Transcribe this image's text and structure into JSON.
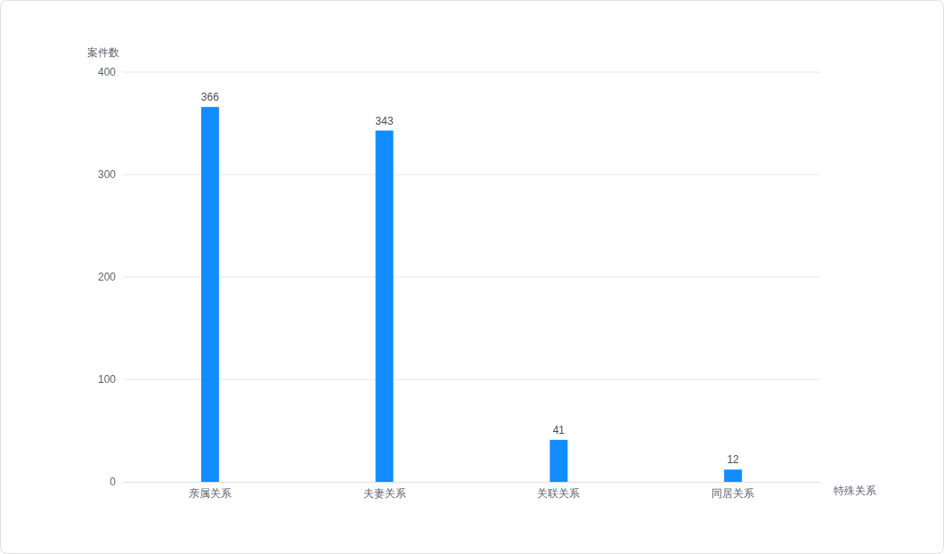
{
  "chart_data": {
    "type": "bar",
    "xlabel": "特殊关系",
    "ylabel": "案件数",
    "categories": [
      "亲属关系",
      "夫妻关系",
      "关联关系",
      "同居关系"
    ],
    "values": [
      366,
      343,
      41,
      12
    ],
    "color": "#118dff",
    "ylim": [
      0,
      400
    ],
    "yticks": [
      0,
      100,
      200,
      300,
      400
    ],
    "grid": "y",
    "data_labels": true
  }
}
